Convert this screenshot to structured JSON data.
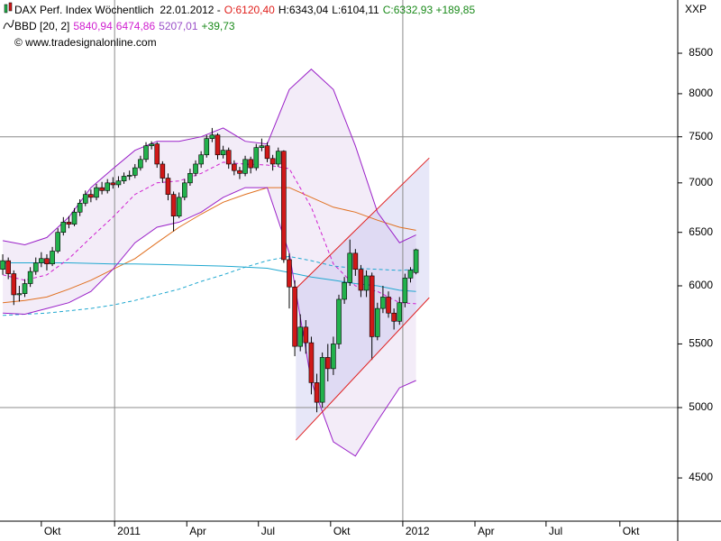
{
  "chart_data": {
    "type": "candlestick",
    "header_lines": [
      [
        {
          "text": "DAX Perf. Index Wöchentlich  22.01.2012 -",
          "color": "#000000"
        },
        {
          "text": "O:6120,40",
          "color": "#e0201c"
        },
        {
          "text": "H:6343,04",
          "color": "#000000"
        },
        {
          "text": "L:6104,11",
          "color": "#000000"
        },
        {
          "text": "C:6332,93 +189,85",
          "color": "#1a8a1a"
        }
      ],
      [
        {
          "text": "BBD [20, 2]",
          "color": "#000000"
        },
        {
          "text": "5840,94",
          "color": "#d020d0"
        },
        {
          "text": "6474,86",
          "color": "#d020d0"
        },
        {
          "text": "5207,01",
          "color": "#9a50c8"
        },
        {
          "text": "+39,73",
          "color": "#1a8a1a"
        }
      ],
      [
        {
          "text": "© www.tradesignalonline.com",
          "color": "#000000"
        }
      ]
    ],
    "corner_label": "XXP",
    "log_scale": true,
    "ylim": [
      4218,
      9205
    ],
    "yticks": [
      4500,
      5000,
      5500,
      6000,
      6500,
      7000,
      7500,
      8000,
      8500
    ],
    "ygrid": [
      5000,
      7500
    ],
    "xlim": [
      -0.5,
      122.5
    ],
    "xticks": [
      {
        "value": 7,
        "label": "Okt"
      },
      {
        "value": 20.3,
        "label": "2011"
      },
      {
        "value": 33.4,
        "label": "Apr"
      },
      {
        "value": 46.4,
        "label": "Jul"
      },
      {
        "value": 59.5,
        "label": "Okt"
      },
      {
        "value": 72.6,
        "label": "2012"
      },
      {
        "value": 85.7,
        "label": "Apr"
      },
      {
        "value": 98.6,
        "label": "Jul"
      },
      {
        "value": 112,
        "label": "Okt"
      }
    ],
    "xgrid": [
      20.3,
      72.6
    ],
    "up_color": "#22b14c",
    "down_color": "#d01818",
    "x": [
      0,
      1,
      2,
      3,
      4,
      5,
      6,
      7,
      8,
      9,
      10,
      11,
      12,
      13,
      14,
      15,
      16,
      17,
      18,
      19,
      20,
      21,
      22,
      23,
      24,
      25,
      26,
      27,
      28,
      29,
      30,
      31,
      32,
      33,
      34,
      35,
      36,
      37,
      38,
      39,
      40,
      41,
      42,
      43,
      44,
      45,
      46,
      47,
      48,
      49,
      50,
      51,
      52,
      53,
      54,
      55,
      56,
      57,
      58,
      59,
      60,
      61,
      62,
      63,
      64,
      65,
      66,
      67,
      68,
      69,
      70,
      71,
      72,
      73,
      74,
      75
    ],
    "open": [
      6150,
      6230,
      6110,
      5920,
      5930,
      6020,
      6130,
      6210,
      6250,
      6200,
      6320,
      6500,
      6600,
      6580,
      6700,
      6790,
      6880,
      6850,
      6950,
      6920,
      7000,
      6980,
      7020,
      7070,
      7080,
      7160,
      7250,
      7400,
      7420,
      7200,
      7050,
      6880,
      6660,
      6850,
      7000,
      7100,
      7200,
      7300,
      7480,
      7520,
      7300,
      7350,
      7200,
      7130,
      7100,
      7250,
      7160,
      7380,
      7400,
      7260,
      7200,
      7340,
      6240,
      5990,
      5480,
      5640,
      5510,
      5190,
      5040,
      5390,
      5300,
      5500,
      5880,
      6030,
      6300,
      6150,
      5960,
      6090,
      5560,
      5800,
      5900,
      5760,
      5690,
      5850,
      6070,
      6120.4
    ],
    "high": [
      6290,
      6260,
      6140,
      6000,
      6060,
      6170,
      6260,
      6310,
      6290,
      6360,
      6540,
      6650,
      6660,
      6740,
      6830,
      6920,
      6930,
      6990,
      7010,
      7040,
      7060,
      7070,
      7110,
      7130,
      7200,
      7290,
      7440,
      7450,
      7440,
      7230,
      7100,
      6910,
      6900,
      7040,
      7150,
      7240,
      7340,
      7520,
      7600,
      7540,
      7400,
      7380,
      7240,
      7170,
      7290,
      7280,
      7420,
      7480,
      7440,
      7300,
      7380,
      7350,
      6300,
      6050,
      5750,
      5700,
      5560,
      5260,
      5430,
      5500,
      5560,
      5920,
      6080,
      6430,
      6340,
      6190,
      6140,
      6120,
      5850,
      6000,
      5950,
      5800,
      5900,
      6110,
      6170,
      6343.04
    ],
    "low": [
      6100,
      6060,
      5830,
      5860,
      5900,
      5990,
      6100,
      6170,
      6140,
      6180,
      6300,
      6470,
      6540,
      6560,
      6660,
      6760,
      6800,
      6820,
      6880,
      6890,
      6940,
      6950,
      6990,
      7030,
      7050,
      7130,
      7220,
      7360,
      7160,
      7000,
      6820,
      6510,
      6640,
      6820,
      6970,
      7070,
      7160,
      7270,
      7440,
      7250,
      7260,
      7150,
      7080,
      7040,
      7070,
      7100,
      7130,
      7340,
      7220,
      7130,
      7170,
      6210,
      5800,
      5400,
      5440,
      5420,
      5100,
      4965,
      5000,
      5200,
      5250,
      5460,
      5840,
      6000,
      6090,
      5900,
      5900,
      5370,
      5530,
      5760,
      5720,
      5620,
      5660,
      5810,
      6030,
      6104.11
    ],
    "close": [
      6230,
      6110,
      5920,
      5930,
      6020,
      6130,
      6210,
      6250,
      6200,
      6320,
      6500,
      6600,
      6580,
      6700,
      6790,
      6880,
      6850,
      6950,
      6920,
      7000,
      6980,
      7020,
      7070,
      7080,
      7160,
      7250,
      7400,
      7420,
      7200,
      7050,
      6880,
      6660,
      6850,
      7000,
      7100,
      7200,
      7300,
      7480,
      7520,
      7300,
      7350,
      7200,
      7130,
      7100,
      7250,
      7160,
      7380,
      7400,
      7260,
      7200,
      7340,
      6240,
      5990,
      5480,
      5640,
      5510,
      5190,
      5040,
      5390,
      5300,
      5500,
      5880,
      6030,
      6300,
      6150,
      5960,
      6090,
      5560,
      5800,
      5900,
      5760,
      5690,
      5850,
      6070,
      6143,
      6332.93
    ],
    "bollinger": {
      "x": [
        0,
        4,
        8,
        12,
        16,
        20,
        24,
        28,
        32,
        36,
        40,
        44,
        48,
        52,
        56,
        60,
        64,
        68,
        72,
        75
      ],
      "upper": [
        6420,
        6380,
        6450,
        6650,
        6950,
        7150,
        7350,
        7450,
        7450,
        7500,
        7600,
        7450,
        7420,
        8050,
        8300,
        8050,
        7400,
        6700,
        6400,
        6474.86
      ],
      "lower": [
        5760,
        5750,
        5800,
        5850,
        5950,
        6150,
        6400,
        6550,
        6600,
        6700,
        6850,
        6950,
        6950,
        6300,
        5200,
        4750,
        4650,
        4900,
        5150,
        5207.01
      ],
      "middle": [
        6100,
        6050,
        6100,
        6250,
        6450,
        6650,
        6880,
        7000,
        7020,
        7100,
        7220,
        7200,
        7190,
        7150,
        6750,
        6200,
        6000,
        5950,
        5850,
        5840.94
      ],
      "color": "#9a20c8",
      "middle_color": "#d020d0",
      "fill": "rgba(190,150,215,0.18)"
    },
    "averages": [
      {
        "x": [
          0,
          4,
          8,
          12,
          16,
          20,
          24,
          28,
          32,
          36,
          40,
          44,
          48,
          52,
          56,
          60,
          64,
          68,
          72,
          75
        ],
        "values": [
          5850,
          5870,
          5900,
          5970,
          6050,
          6150,
          6250,
          6400,
          6550,
          6680,
          6800,
          6880,
          6950,
          6950,
          6850,
          6750,
          6700,
          6620,
          6550,
          6520
        ],
        "color": "#e07020",
        "dashed": false
      },
      {
        "x": [
          0,
          4,
          8,
          12,
          16,
          20,
          24,
          28,
          32,
          36,
          40,
          44,
          48,
          52,
          56,
          60,
          64,
          68,
          72,
          75
        ],
        "values": [
          6210,
          6210,
          6210,
          6210,
          6205,
          6200,
          6200,
          6195,
          6190,
          6185,
          6180,
          6170,
          6160,
          6120,
          6080,
          6050,
          6020,
          6000,
          5960,
          5950
        ],
        "color": "#20a8d0",
        "dashed": false
      },
      {
        "x": [
          0,
          4,
          8,
          12,
          16,
          20,
          24,
          28,
          32,
          36,
          40,
          44,
          48,
          52,
          56,
          60,
          64,
          68,
          72,
          75
        ],
        "values": [
          5740,
          5750,
          5760,
          5780,
          5800,
          5830,
          5870,
          5920,
          5970,
          6040,
          6100,
          6170,
          6230,
          6270,
          6230,
          6180,
          6160,
          6150,
          6140,
          6150
        ],
        "color": "#20a8d0",
        "dashed": true
      }
    ],
    "channel": {
      "x": [
        53.2,
        77.4
      ],
      "upper": [
        5975,
        7266
      ],
      "lower": [
        4762,
        5895
      ],
      "color": "#e02020",
      "fill": "rgba(185,185,235,0.35)"
    }
  }
}
